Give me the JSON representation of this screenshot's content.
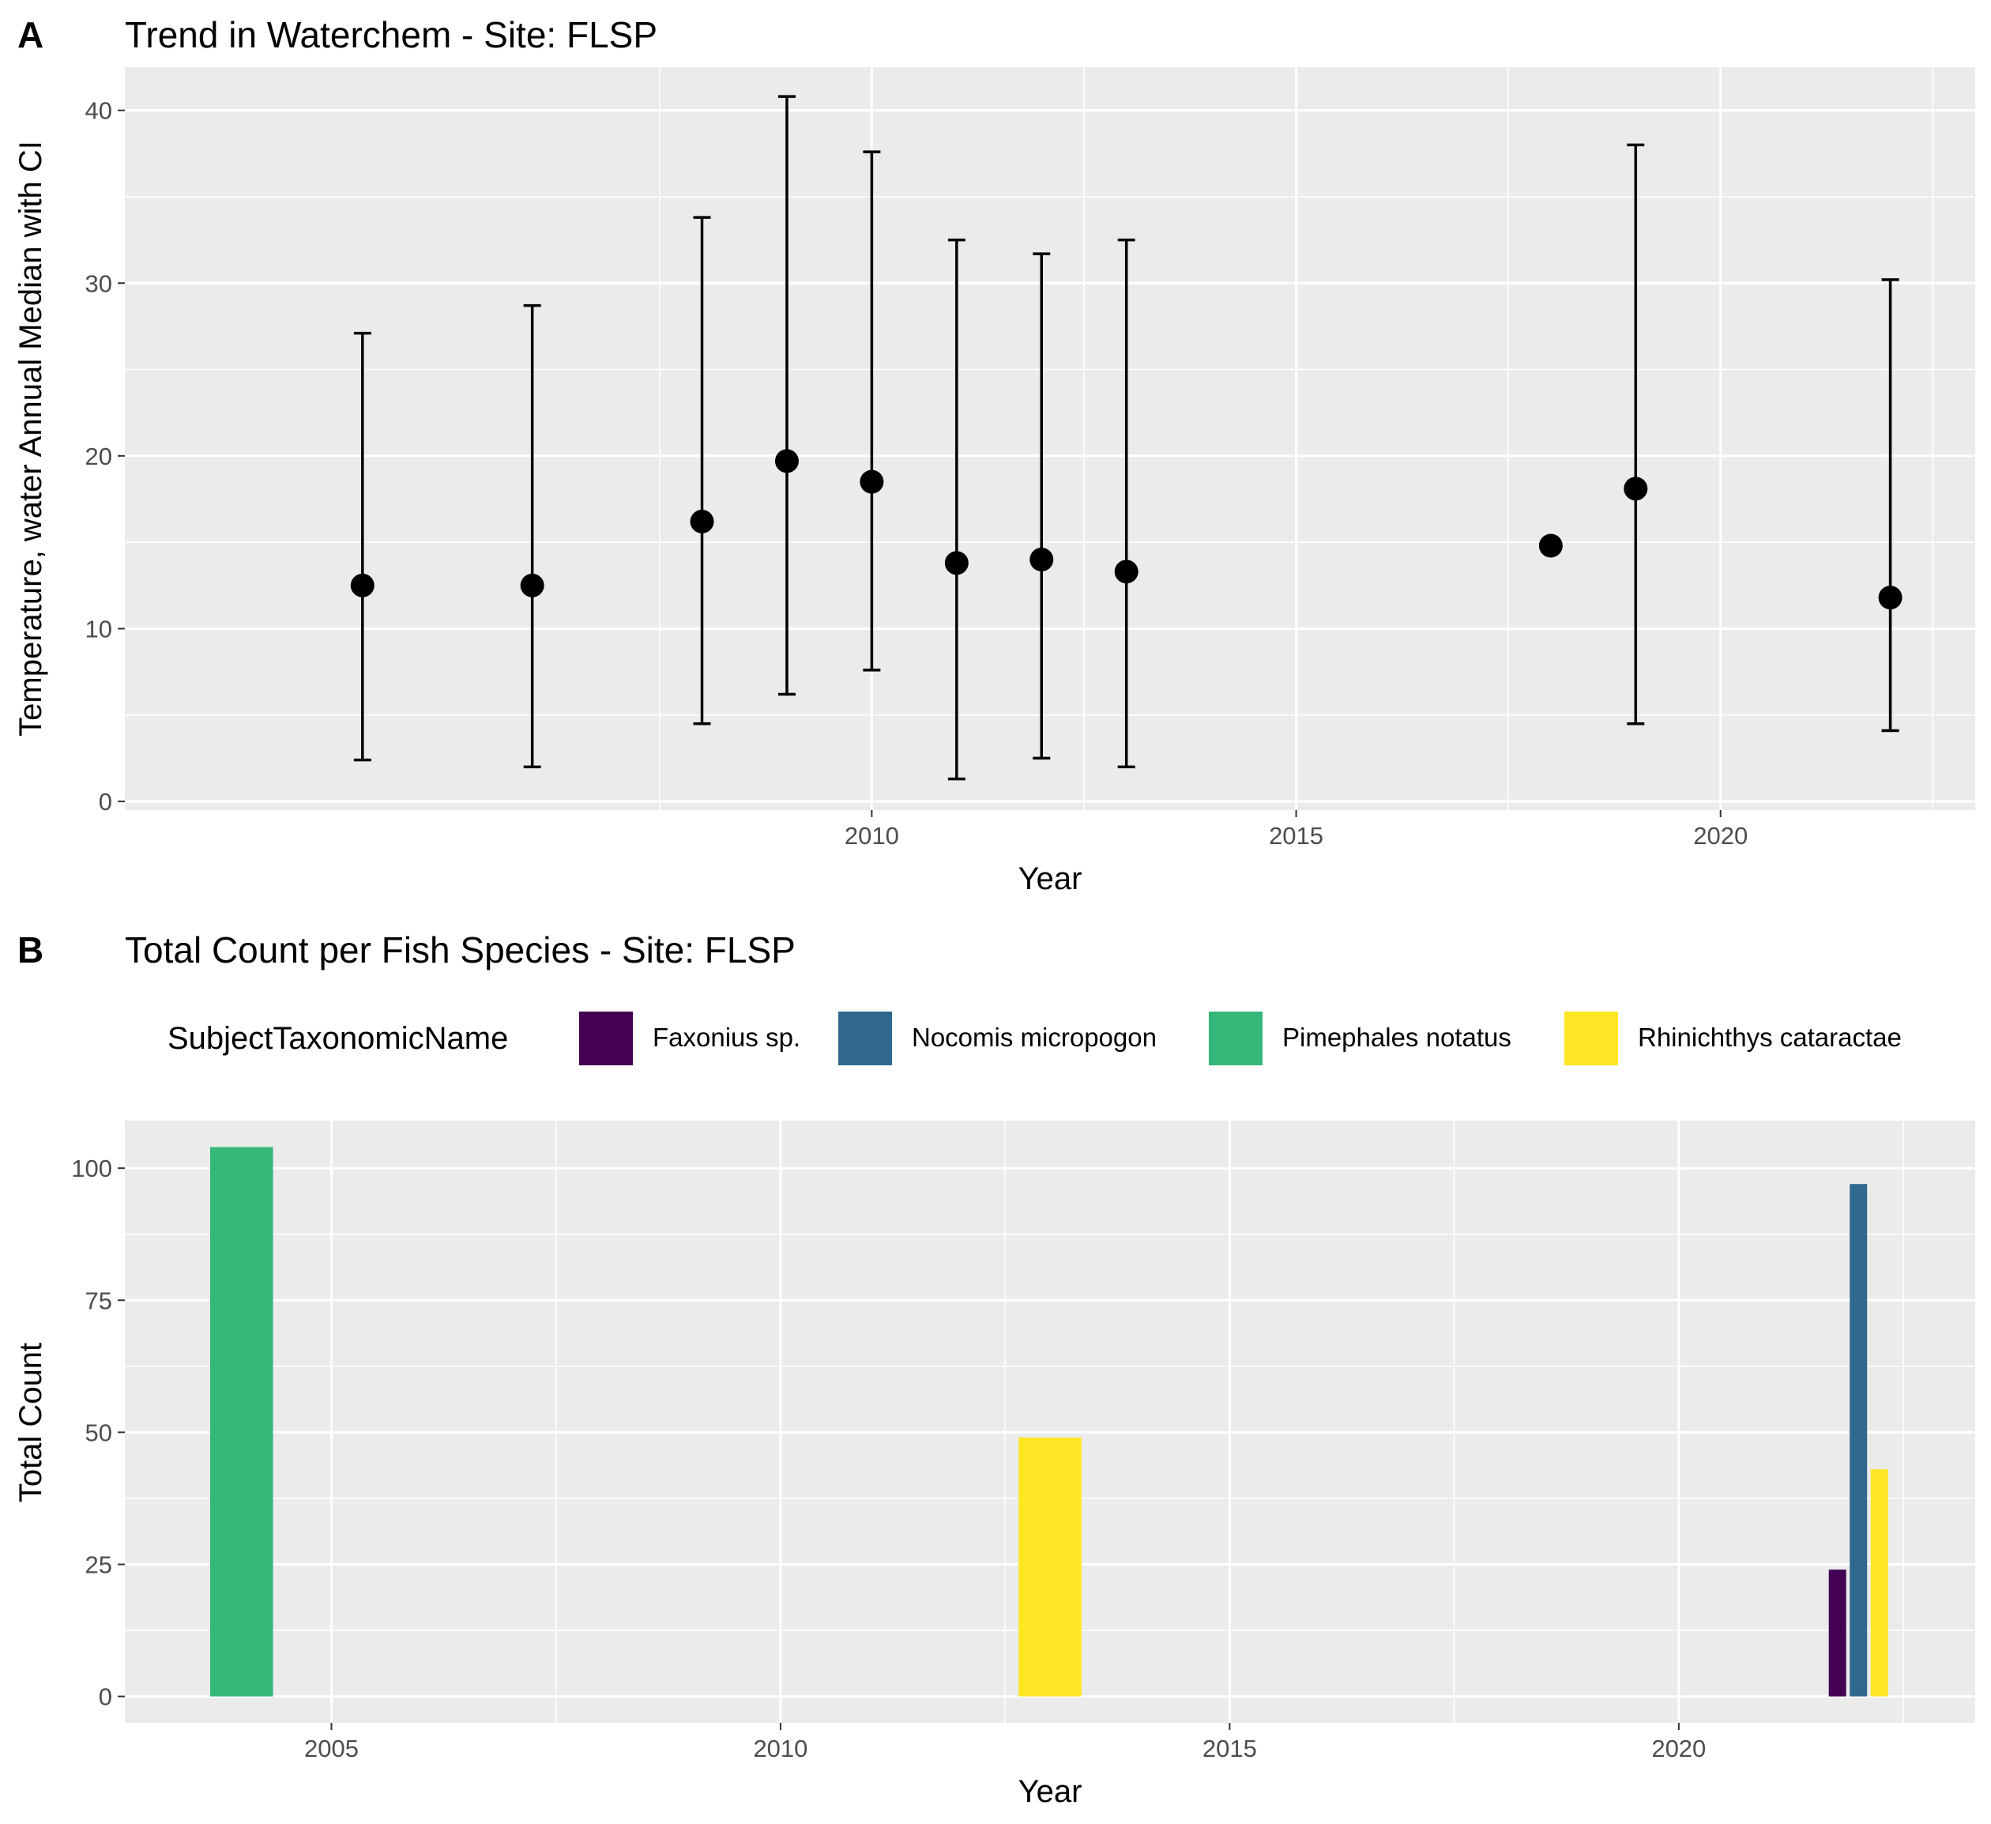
{
  "chart_data": [
    {
      "panel": "A",
      "type": "scatter",
      "title": "Trend in Waterchem - Site: FLSP",
      "xlabel": "Year",
      "ylabel": "Temperature, water Annual Median with CI",
      "xlim": [
        2001.2,
        2023
      ],
      "ylim": [
        -0.5,
        42.5
      ],
      "xticks": [
        2010,
        2015,
        2020
      ],
      "yticks": [
        0,
        10,
        20,
        30,
        40
      ],
      "grid": true,
      "error_bars": true,
      "points": [
        {
          "x": 2004,
          "y": 12.5,
          "lo": 2.4,
          "hi": 27.1
        },
        {
          "x": 2006,
          "y": 12.5,
          "lo": 2.0,
          "hi": 28.7
        },
        {
          "x": 2008,
          "y": 16.2,
          "lo": 4.5,
          "hi": 33.8
        },
        {
          "x": 2009,
          "y": 19.7,
          "lo": 6.2,
          "hi": 40.8
        },
        {
          "x": 2010,
          "y": 18.5,
          "lo": 7.6,
          "hi": 37.6
        },
        {
          "x": 2011,
          "y": 13.8,
          "lo": 1.3,
          "hi": 32.5
        },
        {
          "x": 2012,
          "y": 14.0,
          "lo": 2.5,
          "hi": 31.7
        },
        {
          "x": 2013,
          "y": 13.3,
          "lo": 2.0,
          "hi": 32.5
        },
        {
          "x": 2018,
          "y": 14.8,
          "lo": null,
          "hi": null
        },
        {
          "x": 2019,
          "y": 18.1,
          "lo": 4.5,
          "hi": 38.0
        },
        {
          "x": 2022,
          "y": 11.8,
          "lo": 4.1,
          "hi": 30.2
        }
      ]
    },
    {
      "panel": "B",
      "type": "bar",
      "title": "Total Count per Fish Species - Site: FLSP",
      "xlabel": "Year",
      "ylabel": "Total Count",
      "xlim": [
        2002.7,
        2023.3
      ],
      "ylim": [
        -5,
        109
      ],
      "xticks": [
        2005,
        2010,
        2015,
        2020
      ],
      "yticks": [
        0,
        25,
        50,
        75,
        100
      ],
      "grid": true,
      "legend_title": "SubjectTaxonomicName",
      "legend_position": "top",
      "series": [
        {
          "name": "Faxonius sp.",
          "color": "#440154"
        },
        {
          "name": "Nocomis micropogon",
          "color": "#31688E"
        },
        {
          "name": "Pimephales notatus",
          "color": "#35B779"
        },
        {
          "name": "Rhinichthys cataractae",
          "color": "#FDE725"
        }
      ],
      "bars": [
        {
          "x": 2004,
          "series": "Pimephales notatus",
          "value": 104,
          "dodge": 0,
          "of": 1
        },
        {
          "x": 2013,
          "series": "Rhinichthys cataractae",
          "value": 49,
          "dodge": 0,
          "of": 1
        },
        {
          "x": 2022,
          "series": "Faxonius sp.",
          "value": 24,
          "dodge": 0,
          "of": 3
        },
        {
          "x": 2022,
          "series": "Nocomis micropogon",
          "value": 97,
          "dodge": 1,
          "of": 3
        },
        {
          "x": 2022,
          "series": "Rhinichthys cataractae",
          "value": 43,
          "dodge": 2,
          "of": 3
        }
      ]
    }
  ],
  "panel_tags": {
    "a": "A",
    "b": "B"
  },
  "colors": {
    "panel_bg": "#EBEBEB",
    "grid": "#FFFFFF",
    "point": "#000000"
  }
}
